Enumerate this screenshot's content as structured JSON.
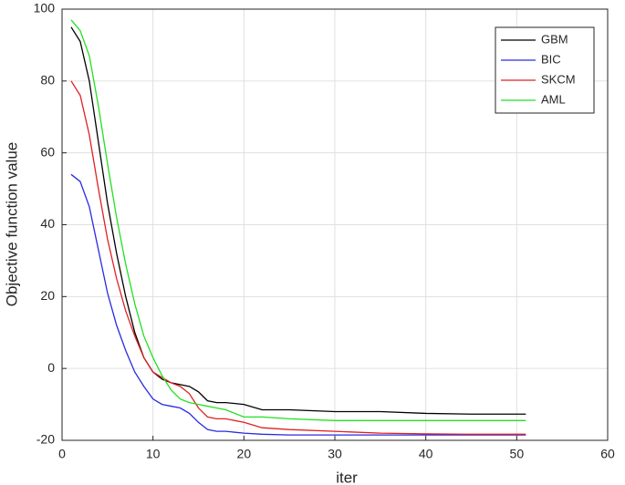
{
  "chart_data": {
    "type": "line",
    "xlabel": "iter",
    "ylabel": "Objective function value",
    "x": [
      1,
      2,
      3,
      4,
      5,
      6,
      7,
      8,
      9,
      10,
      11,
      12,
      13,
      14,
      15,
      16,
      17,
      18,
      20,
      22,
      25,
      30,
      35,
      40,
      45,
      51
    ],
    "series": [
      {
        "name": "GBM",
        "color": "#000000",
        "values": [
          95,
          91,
          80,
          63,
          46,
          32,
          20,
          10,
          3,
          -1,
          -3,
          -4,
          -4.5,
          -5,
          -6.5,
          -9,
          -9.5,
          -9.5,
          -10,
          -11.5,
          -11.5,
          -12,
          -12,
          -12.5,
          -12.7,
          -12.7
        ]
      },
      {
        "name": "BIC",
        "color": "#2a2ae0",
        "values": [
          54,
          52,
          45,
          33,
          21,
          12,
          5,
          -1,
          -5,
          -8.5,
          -10,
          -10.5,
          -11,
          -12.5,
          -15,
          -17,
          -17.5,
          -17.5,
          -18,
          -18.3,
          -18.5,
          -18.5,
          -18.5,
          -18.5,
          -18.5,
          -18.5
        ]
      },
      {
        "name": "SKCM",
        "color": "#e02020",
        "values": [
          80,
          76,
          65,
          50,
          36,
          25,
          16,
          9,
          3,
          -1,
          -2.5,
          -4,
          -5,
          -7,
          -11,
          -13.5,
          -14,
          -14,
          -15,
          -16.5,
          -17,
          -17.5,
          -18,
          -18.2,
          -18.3,
          -18.3
        ]
      },
      {
        "name": "AML",
        "color": "#22e022",
        "values": [
          97,
          94,
          87,
          73,
          57,
          42,
          29,
          18,
          9,
          3,
          -2,
          -6,
          -8.5,
          -9.5,
          -10,
          -10.5,
          -11,
          -11.5,
          -13.5,
          -13.5,
          -14,
          -14.5,
          -14.5,
          -14.5,
          -14.5,
          -14.5
        ]
      }
    ],
    "xlim": [
      0,
      60
    ],
    "xticks": [
      0,
      10,
      20,
      30,
      40,
      50,
      60
    ],
    "ylim": [
      -20,
      100
    ],
    "yticks": [
      -20,
      0,
      20,
      40,
      60,
      80,
      100
    ],
    "grid": true,
    "legend": "top-right"
  }
}
